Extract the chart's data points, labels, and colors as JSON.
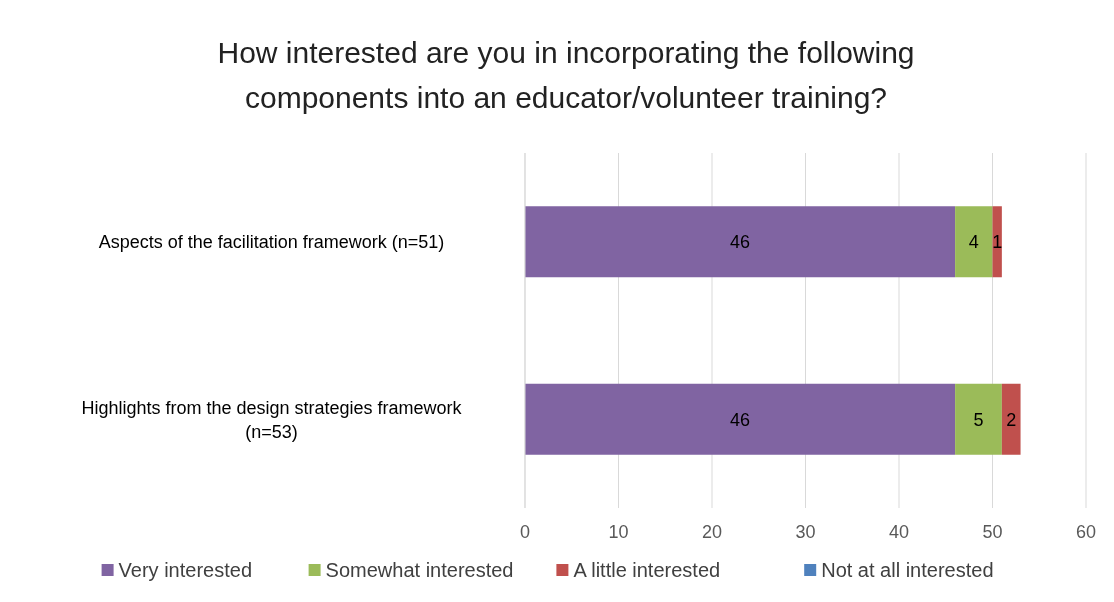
{
  "chart_data": {
    "type": "bar",
    "orientation": "horizontal",
    "stacked": true,
    "title": "How interested are you in incorporating the following components into an educator/volunteer training?",
    "categories": [
      "Aspects of the facilitation framework (n=51)",
      "Highlights from the design strategies framework (n=53)"
    ],
    "series": [
      {
        "name": "Very interested",
        "color": "#8064a2",
        "values": [
          46,
          46
        ],
        "value_labels": [
          "46",
          "46"
        ]
      },
      {
        "name": "Somewhat interested",
        "color": "#9bbb59",
        "values": [
          4,
          5
        ],
        "value_labels": [
          "4",
          "5"
        ]
      },
      {
        "name": "A little interested",
        "color": "#c0504d",
        "values": [
          1,
          2
        ],
        "value_labels": [
          "1",
          "2"
        ]
      },
      {
        "name": "Not at all interested",
        "color": "#4f81bd",
        "values": [
          0,
          0
        ],
        "value_labels": [
          null,
          null
        ]
      }
    ],
    "xlim": [
      0,
      60
    ],
    "xticks": [
      0,
      10,
      20,
      30,
      40,
      50,
      60
    ],
    "grid": "x",
    "legend": "bottom"
  }
}
